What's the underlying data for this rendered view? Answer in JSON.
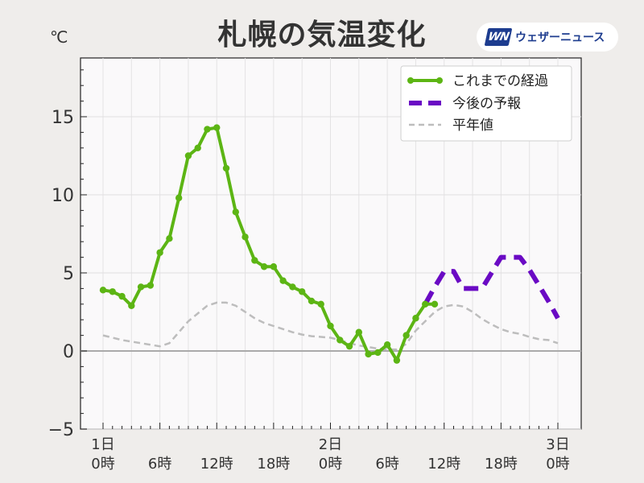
{
  "header": {
    "title": "札幌の気温変化",
    "unit": "℃",
    "logo_mark": "WN",
    "logo_text": "ウェザーニュース"
  },
  "colors": {
    "observed": "#5cb514",
    "forecast": "#6a0ac4",
    "normal": "#bdbdbd",
    "zero_line": "#aaaaaa",
    "plot_bg": "#faf9fa"
  },
  "chart_data": {
    "type": "line",
    "title": "札幌の気温変化",
    "ylabel": "℃",
    "xlim": [
      0,
      48
    ],
    "ylim": [
      -5,
      18.5
    ],
    "y_ticks": [
      -5,
      0,
      5,
      10,
      15
    ],
    "x_ticks": [
      {
        "x": 0,
        "line1": "1日",
        "line2": "0時"
      },
      {
        "x": 6,
        "line1": "",
        "line2": "6時"
      },
      {
        "x": 12,
        "line1": "",
        "line2": "12時"
      },
      {
        "x": 18,
        "line1": "",
        "line2": "18時"
      },
      {
        "x": 24,
        "line1": "2日",
        "line2": "0時"
      },
      {
        "x": 30,
        "line1": "",
        "line2": "6時"
      },
      {
        "x": 36,
        "line1": "",
        "line2": "12時"
      },
      {
        "x": 42,
        "line1": "",
        "line2": "18時"
      },
      {
        "x": 48,
        "line1": "3日",
        "line2": "0時"
      }
    ],
    "grid": true,
    "legend_position": "top-right",
    "series": [
      {
        "name": "これまでの経過",
        "style": "solid-markers",
        "x": [
          0,
          1,
          2,
          3,
          4,
          5,
          6,
          7,
          8,
          9,
          10,
          11,
          12,
          13,
          14,
          15,
          16,
          17,
          18,
          19,
          20,
          21,
          22,
          23,
          24,
          25,
          26,
          27,
          28,
          29,
          30,
          31,
          32,
          33,
          34,
          35
        ],
        "y": [
          3.9,
          3.8,
          3.5,
          2.9,
          4.1,
          4.2,
          6.3,
          7.2,
          9.8,
          12.5,
          13.0,
          14.2,
          14.3,
          11.7,
          8.9,
          7.3,
          5.8,
          5.4,
          5.4,
          4.5,
          4.1,
          3.8,
          3.2,
          3.0,
          1.6,
          0.7,
          0.3,
          1.2,
          -0.2,
          -0.1,
          0.4,
          -0.6,
          1.0,
          2.1,
          3.0,
          3.0
        ]
      },
      {
        "name": "今後の予報",
        "style": "dashed-thick",
        "x": [
          34,
          35,
          36,
          37,
          38,
          39,
          40,
          41,
          42,
          43,
          44,
          45,
          46,
          47,
          48
        ],
        "y": [
          3.0,
          4.1,
          5.1,
          5.1,
          4.0,
          4.0,
          4.0,
          5.0,
          6.0,
          6.0,
          6.0,
          5.2,
          4.2,
          3.2,
          2.1
        ]
      },
      {
        "name": "平年値",
        "style": "dashed-thin",
        "x": [
          0,
          2,
          4,
          6,
          7,
          8,
          9,
          10,
          11,
          12,
          13,
          14,
          15,
          16,
          17,
          18,
          19,
          20,
          21,
          22,
          23,
          24,
          25,
          26,
          27,
          28,
          29,
          30,
          31,
          32,
          33,
          34,
          35,
          36,
          37,
          38,
          39,
          40,
          41,
          42,
          43,
          44,
          45,
          46,
          47,
          48
        ],
        "y": [
          1.0,
          0.7,
          0.5,
          0.3,
          0.5,
          1.2,
          1.9,
          2.4,
          2.9,
          3.1,
          3.1,
          2.9,
          2.5,
          2.1,
          1.8,
          1.6,
          1.4,
          1.2,
          1.05,
          0.95,
          0.9,
          0.85,
          0.7,
          0.5,
          0.35,
          0.25,
          0.15,
          0.1,
          0.1,
          0.45,
          1.3,
          1.9,
          2.5,
          2.85,
          2.95,
          2.85,
          2.5,
          2.05,
          1.7,
          1.4,
          1.2,
          1.1,
          0.9,
          0.75,
          0.7,
          0.5
        ]
      }
    ]
  }
}
